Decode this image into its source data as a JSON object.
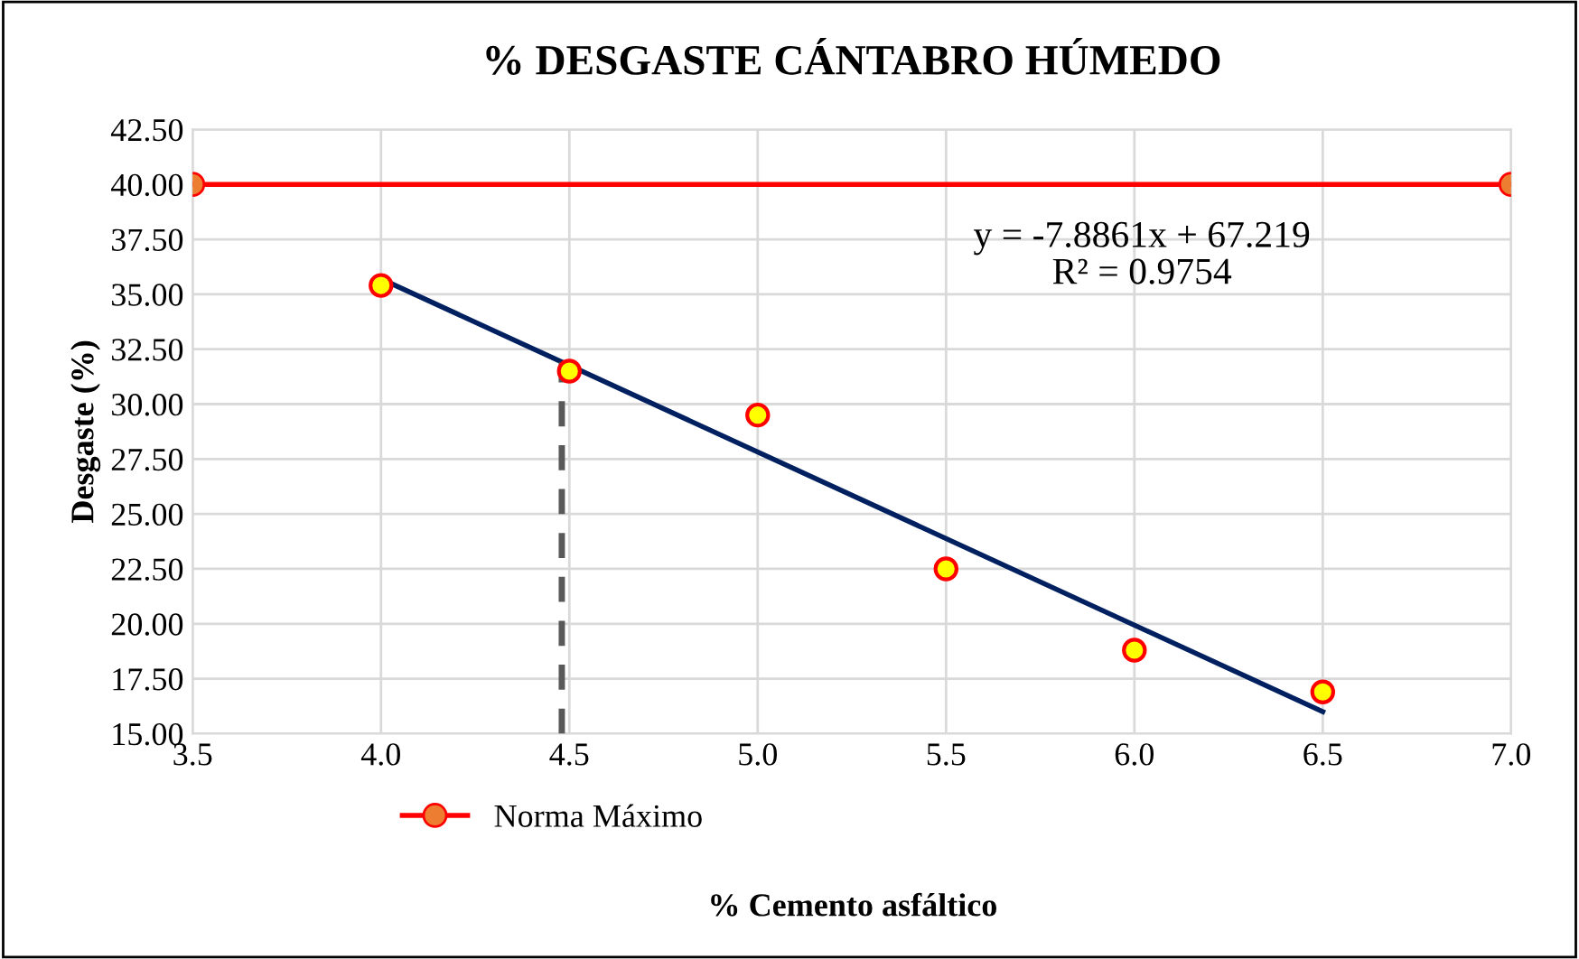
{
  "chart_data": {
    "type": "scatter",
    "title": "% DESGASTE CÁNTABRO HÚMEDO",
    "xlabel": "% Cemento asfáltico",
    "ylabel": "Desgaste (%)",
    "xlim": [
      3.5,
      7.0
    ],
    "xticks": [
      {
        "value": 3.5,
        "label": "3.5"
      },
      {
        "value": 4.0,
        "label": "4.0"
      },
      {
        "value": 4.5,
        "label": "4.5"
      },
      {
        "value": 5.0,
        "label": "5.0"
      },
      {
        "value": 5.5,
        "label": "5.5"
      },
      {
        "value": 6.0,
        "label": "6.0"
      },
      {
        "value": 6.5,
        "label": "6.5"
      },
      {
        "value": 7.0,
        "label": "7.0"
      }
    ],
    "ylim": [
      15,
      42.5
    ],
    "yticks": [
      {
        "value": 15,
        "label": "15.00"
      },
      {
        "value": 17.5,
        "label": "17.50"
      },
      {
        "value": 20,
        "label": "20.00"
      },
      {
        "value": 22.5,
        "label": "22.50"
      },
      {
        "value": 25,
        "label": "25.00"
      },
      {
        "value": 27.5,
        "label": "27.50"
      },
      {
        "value": 30,
        "label": "30.00"
      },
      {
        "value": 32.5,
        "label": "32.50"
      },
      {
        "value": 35,
        "label": "35.00"
      },
      {
        "value": 37.5,
        "label": "37.50"
      },
      {
        "value": 40,
        "label": "40.00"
      },
      {
        "value": 42.5,
        "label": "42.50"
      }
    ],
    "grid": true,
    "legend": "bottom",
    "series": [
      {
        "type": "line",
        "name": "Norma Máximo",
        "color": "#ff0000",
        "marker": "circle",
        "x": [
          3.5,
          7.0
        ],
        "values": [
          40,
          40
        ]
      },
      {
        "type": "line",
        "color": "#002060",
        "marker": "none",
        "x": [
          4.0,
          6.5
        ],
        "values": [
          35.7,
          16.0
        ]
      },
      {
        "type": "line",
        "color": "#595959",
        "marker": "none",
        "line_style": "dashed",
        "x": [
          4.48,
          4.48
        ],
        "values": [
          15,
          31.9
        ]
      },
      {
        "color": "#ffff00",
        "marker": "circle",
        "x": [
          4.0,
          4.5,
          5.0,
          5.5,
          6.0,
          6.5
        ],
        "values": [
          35.4,
          31.5,
          29.5,
          22.5,
          18.8,
          16.9
        ]
      }
    ],
    "annotations": [
      "y = -7.8861x + 67.219\nR² = 0.9754"
    ]
  }
}
